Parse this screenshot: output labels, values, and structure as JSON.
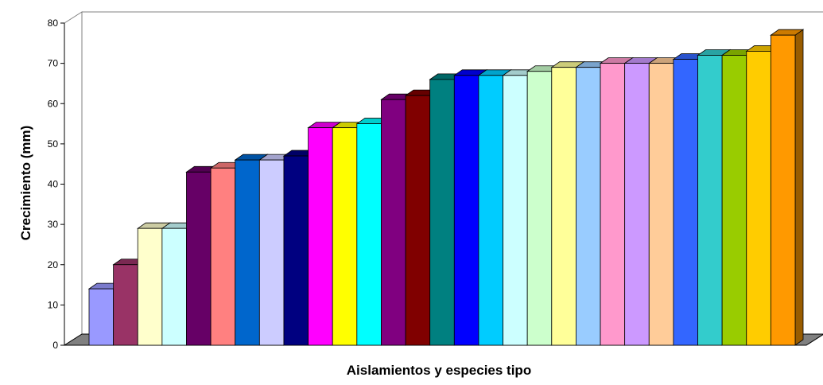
{
  "chart_data": {
    "type": "bar",
    "style": "3d-column",
    "xlabel": "Aislamientos y especies tipo",
    "ylabel": "Crecimiento (mm)",
    "ylim": [
      0,
      80
    ],
    "yticks": [
      "0",
      "10",
      "20",
      "30",
      "40",
      "50",
      "60",
      "70",
      "80"
    ],
    "grid": false,
    "legend": "none",
    "values": [
      14,
      20,
      29,
      29,
      43,
      44,
      46,
      46,
      47,
      54,
      54,
      55,
      61,
      62,
      66,
      67,
      67,
      67,
      68,
      69,
      69,
      70,
      70,
      70,
      71,
      72,
      72,
      73,
      77
    ],
    "colors": [
      "#9999FF",
      "#993366",
      "#FFFFCC",
      "#CCFFFF",
      "#660066",
      "#FF8080",
      "#0066CC",
      "#CCCCFF",
      "#000080",
      "#FF00FF",
      "#FFFF00",
      "#00FFFF",
      "#800080",
      "#800000",
      "#008080",
      "#0000FF",
      "#00CCFF",
      "#CCFFFF",
      "#CCFFCC",
      "#FFFF99",
      "#99CCFF",
      "#FF99CC",
      "#CC99FF",
      "#FFCC99",
      "#3366FF",
      "#33CCCC",
      "#99CC00",
      "#FFCC00",
      "#FF9900"
    ]
  }
}
